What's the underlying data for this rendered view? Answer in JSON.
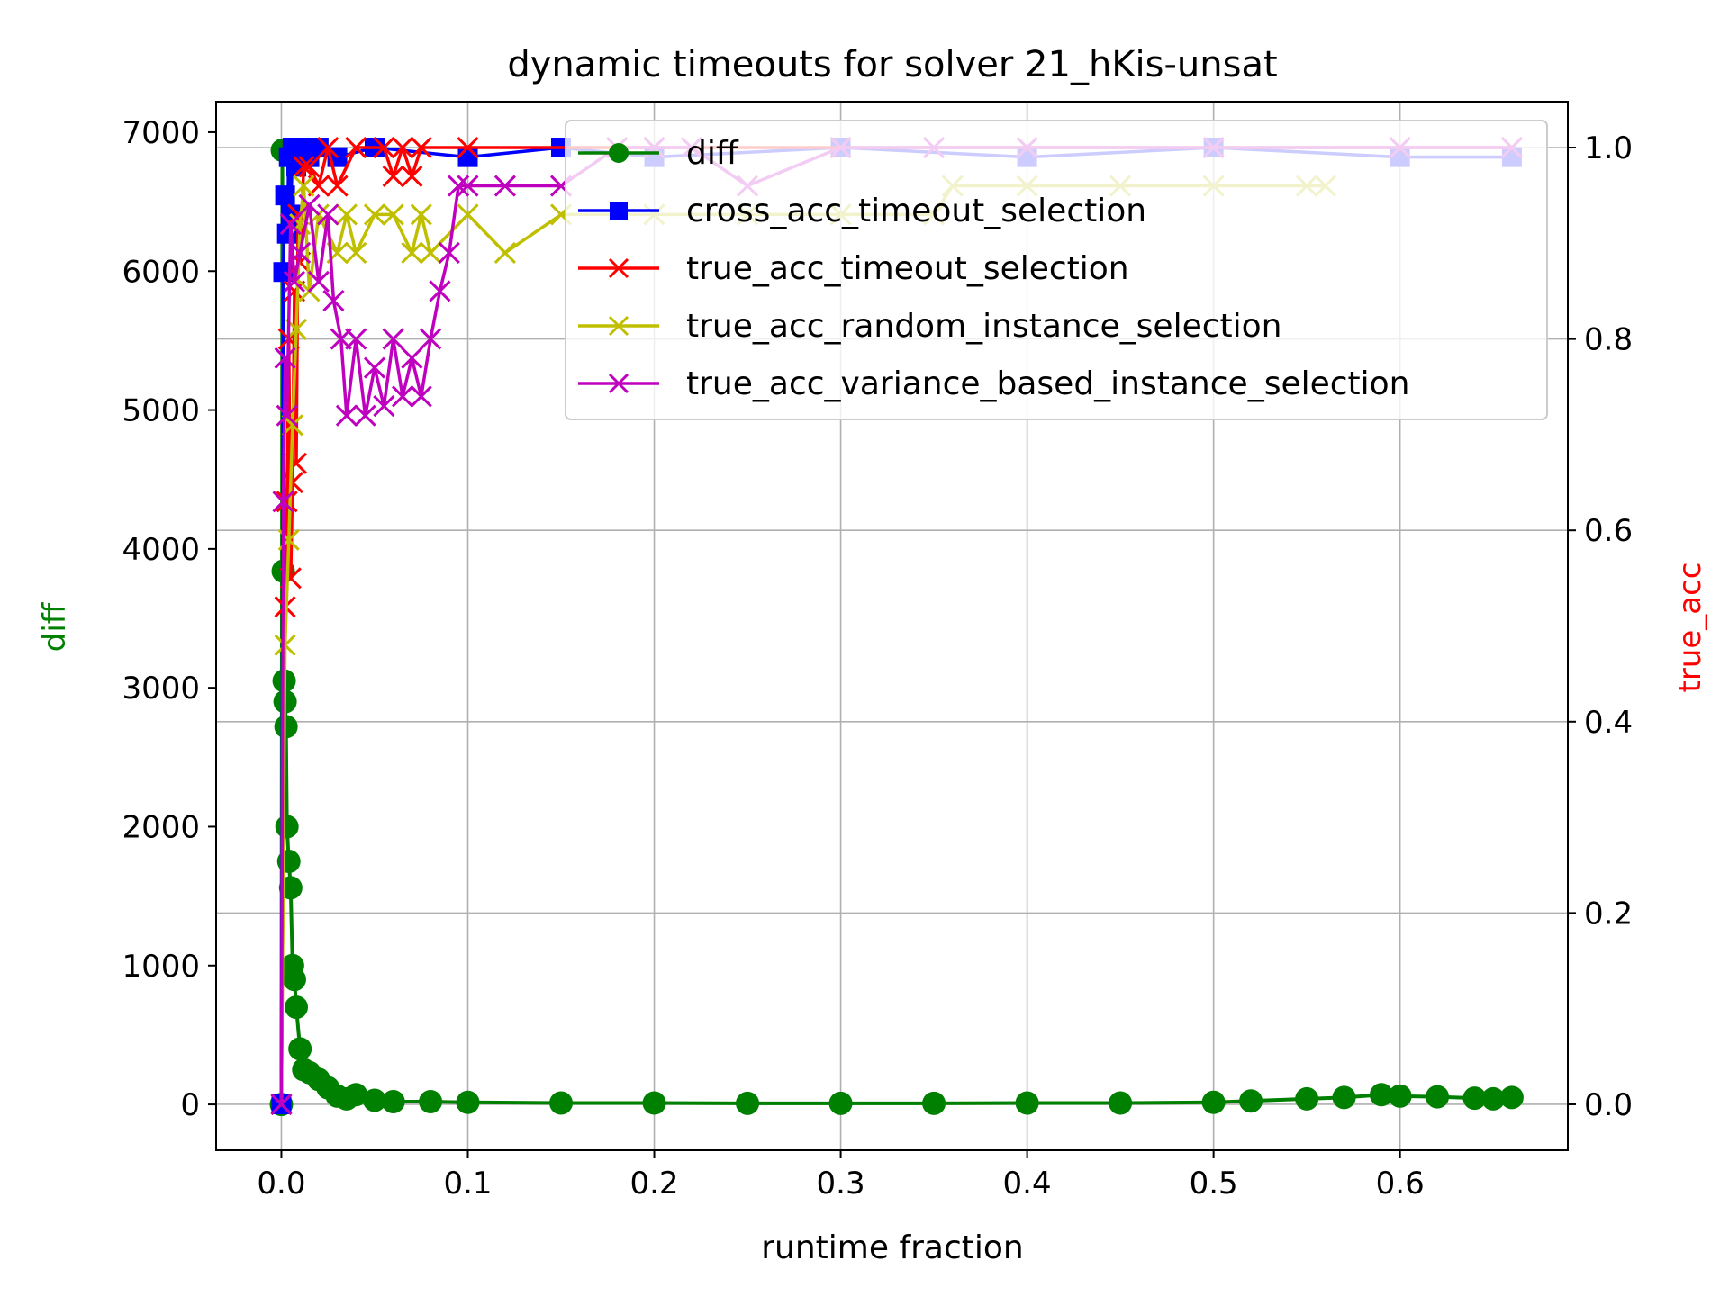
{
  "chart_data": {
    "type": "line",
    "title": "dynamic timeouts for solver 21_hKis-unsat",
    "xlabel": "runtime fraction",
    "ylabel_left": "diff",
    "ylabel_right": "true_acc",
    "xlim": [
      -0.035,
      0.69
    ],
    "ylim_left": [
      -330,
      7220
    ],
    "ylim_right": [
      -0.048,
      1.048
    ],
    "x_ticks": [
      "0.0",
      "0.1",
      "0.2",
      "0.3",
      "0.4",
      "0.5",
      "0.6"
    ],
    "x_tick_values": [
      0.0,
      0.1,
      0.2,
      0.3,
      0.4,
      0.5,
      0.6
    ],
    "y_left_ticks": [
      "0",
      "1000",
      "2000",
      "3000",
      "4000",
      "5000",
      "6000",
      "7000"
    ],
    "y_left_tick_values": [
      0,
      1000,
      2000,
      3000,
      4000,
      5000,
      6000,
      7000
    ],
    "y_right_ticks": [
      "0.0",
      "0.2",
      "0.4",
      "0.6",
      "0.8",
      "1.0"
    ],
    "y_right_tick_values": [
      0.0,
      0.2,
      0.4,
      0.6,
      0.8,
      1.0
    ],
    "grid": true,
    "legend_placement": "upper-right",
    "colors": {
      "diff": "#008000",
      "cross": "#0000ff",
      "true_timeout": "#ff0000",
      "true_random": "#bfbf00",
      "true_variance": "#bf00bf",
      "axis_label_left": "#008000",
      "axis_label_right": "#ff0000"
    },
    "legend": [
      {
        "key": "diff",
        "label": "diff",
        "color": "#008000",
        "marker": "o"
      },
      {
        "key": "cross",
        "label": "cross_acc_timeout_selection",
        "color": "#0000ff",
        "marker": "s"
      },
      {
        "key": "true_timeout",
        "label": "true_acc_timeout_selection",
        "color": "#ff0000",
        "marker": "x"
      },
      {
        "key": "true_random",
        "label": "true_acc_random_instance_selection",
        "color": "#bfbf00",
        "marker": "x"
      },
      {
        "key": "true_variance",
        "label": "true_acc_variance_based_instance_selection",
        "color": "#bf00bf",
        "marker": "x"
      }
    ],
    "series": [
      {
        "key": "diff",
        "axis": "left",
        "color": "#008000",
        "marker": "o",
        "x": [
          0.0,
          0.0005,
          0.001,
          0.0015,
          0.002,
          0.0025,
          0.003,
          0.004,
          0.005,
          0.006,
          0.007,
          0.008,
          0.01,
          0.012,
          0.015,
          0.02,
          0.025,
          0.03,
          0.035,
          0.04,
          0.05,
          0.06,
          0.08,
          0.1,
          0.15,
          0.2,
          0.25,
          0.3,
          0.35,
          0.4,
          0.45,
          0.5,
          0.52,
          0.55,
          0.57,
          0.59,
          0.6,
          0.62,
          0.64,
          0.65,
          0.66
        ],
        "y": [
          0,
          6870,
          3840,
          3050,
          2900,
          2720,
          2000,
          1750,
          1560,
          1000,
          900,
          700,
          400,
          250,
          230,
          180,
          120,
          60,
          40,
          70,
          30,
          20,
          20,
          15,
          10,
          10,
          8,
          8,
          8,
          10,
          10,
          15,
          25,
          40,
          50,
          70,
          60,
          55,
          45,
          40,
          50
        ]
      },
      {
        "key": "cross",
        "axis": "right",
        "color": "#0000ff",
        "marker": "s",
        "x": [
          0.0,
          0.001,
          0.002,
          0.003,
          0.004,
          0.005,
          0.006,
          0.008,
          0.01,
          0.015,
          0.02,
          0.03,
          0.05,
          0.1,
          0.15,
          0.2,
          0.3,
          0.4,
          0.5,
          0.6,
          0.66
        ],
        "y": [
          0.0,
          0.87,
          0.95,
          0.91,
          0.99,
          0.93,
          1.0,
          0.98,
          1.0,
          0.99,
          1.0,
          0.99,
          1.0,
          0.99,
          1.0,
          0.99,
          1.0,
          0.99,
          1.0,
          0.99,
          0.99
        ]
      },
      {
        "key": "true_timeout",
        "axis": "right",
        "color": "#ff0000",
        "marker": "x",
        "x": [
          0.0,
          0.002,
          0.003,
          0.004,
          0.005,
          0.006,
          0.007,
          0.008,
          0.009,
          0.01,
          0.012,
          0.015,
          0.02,
          0.025,
          0.03,
          0.04,
          0.055,
          0.06,
          0.065,
          0.07,
          0.075,
          0.1,
          0.2,
          0.3,
          0.4,
          0.5,
          0.6,
          0.66
        ],
        "y": [
          0.0,
          0.52,
          0.63,
          0.8,
          0.55,
          0.65,
          0.85,
          0.67,
          0.93,
          0.88,
          0.98,
          0.98,
          0.96,
          1.0,
          0.96,
          1.0,
          1.0,
          0.97,
          1.0,
          0.97,
          1.0,
          1.0,
          1.0,
          1.0,
          1.0,
          1.0,
          1.0,
          1.0
        ]
      },
      {
        "key": "true_random",
        "axis": "right",
        "color": "#bfbf00",
        "marker": "x",
        "x": [
          0.0,
          0.002,
          0.004,
          0.006,
          0.008,
          0.01,
          0.012,
          0.015,
          0.02,
          0.03,
          0.035,
          0.04,
          0.05,
          0.06,
          0.07,
          0.075,
          0.08,
          0.1,
          0.12,
          0.15,
          0.2,
          0.25,
          0.3,
          0.35,
          0.36,
          0.4,
          0.45,
          0.5,
          0.55,
          0.56
        ],
        "y": [
          0.0,
          0.48,
          0.59,
          0.71,
          0.81,
          0.92,
          0.96,
          0.85,
          0.93,
          0.89,
          0.93,
          0.89,
          0.93,
          0.93,
          0.89,
          0.93,
          0.89,
          0.93,
          0.89,
          0.93,
          0.93,
          0.93,
          0.93,
          0.93,
          0.96,
          0.96,
          0.96,
          0.96,
          0.96,
          0.96
        ]
      },
      {
        "key": "true_variance",
        "axis": "right",
        "color": "#bf00bf",
        "marker": "x",
        "x": [
          0.0,
          0.001,
          0.002,
          0.003,
          0.005,
          0.007,
          0.01,
          0.015,
          0.02,
          0.025,
          0.028,
          0.032,
          0.035,
          0.04,
          0.045,
          0.05,
          0.055,
          0.06,
          0.065,
          0.07,
          0.075,
          0.08,
          0.085,
          0.09,
          0.095,
          0.1,
          0.12,
          0.15,
          0.18,
          0.2,
          0.22,
          0.25,
          0.3,
          0.35,
          0.4,
          0.5,
          0.6,
          0.66
        ],
        "y": [
          0.0,
          0.63,
          0.78,
          0.72,
          0.92,
          0.86,
          0.89,
          0.94,
          0.86,
          0.93,
          0.84,
          0.8,
          0.72,
          0.8,
          0.72,
          0.77,
          0.73,
          0.8,
          0.74,
          0.78,
          0.74,
          0.8,
          0.85,
          0.89,
          0.96,
          0.96,
          0.96,
          0.96,
          1.0,
          1.0,
          1.0,
          0.96,
          1.0,
          1.0,
          1.0,
          1.0,
          1.0,
          1.0
        ]
      }
    ]
  }
}
